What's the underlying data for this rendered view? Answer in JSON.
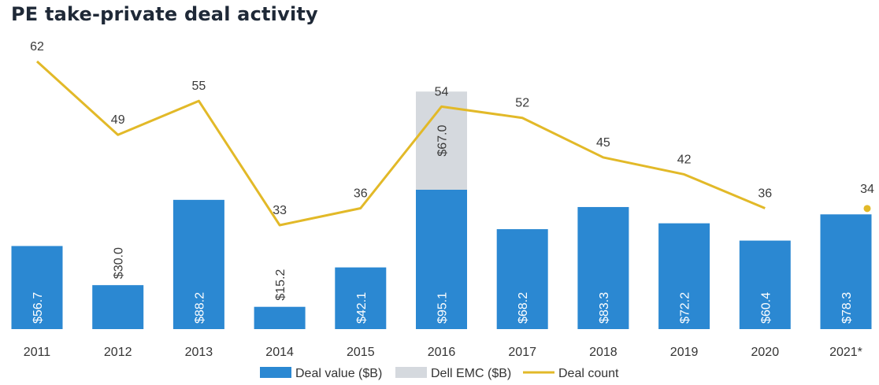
{
  "title": "PE take-private deal activity",
  "colors": {
    "deal_value": "#2b88d2",
    "dell_emc": "#d5d9de",
    "deal_count": "#e2b928"
  },
  "chart_data": {
    "type": "bar",
    "title": "PE take-private deal activity",
    "categories": [
      "2011",
      "2012",
      "2013",
      "2014",
      "2015",
      "2016",
      "2017",
      "2018",
      "2019",
      "2020",
      "2021*"
    ],
    "series": [
      {
        "name": "Deal value ($B)",
        "type": "bar",
        "stack": "value",
        "values": [
          56.7,
          30.0,
          88.2,
          15.2,
          42.1,
          95.1,
          68.2,
          83.3,
          72.2,
          60.4,
          78.3
        ],
        "labels": [
          "$56.7",
          "$30.0",
          "$88.2",
          "$15.2",
          "$42.1",
          "$95.1",
          "$68.2",
          "$83.3",
          "$72.2",
          "$60.4",
          "$78.3"
        ]
      },
      {
        "name": "Dell EMC ($B)",
        "type": "bar",
        "stack": "value",
        "values": [
          null,
          null,
          null,
          null,
          null,
          67.0,
          null,
          null,
          null,
          null,
          null
        ],
        "labels": [
          null,
          null,
          null,
          null,
          null,
          "$67.0",
          null,
          null,
          null,
          null,
          null
        ]
      },
      {
        "name": "Deal count",
        "type": "line",
        "values": [
          62,
          49,
          55,
          33,
          36,
          54,
          52,
          45,
          42,
          36,
          34
        ],
        "labels": [
          "62",
          "49",
          "55",
          "33",
          "36",
          "54",
          "52",
          "45",
          "42",
          "36",
          "34"
        ],
        "note": "2021* shown as a separate point, not connected"
      }
    ],
    "legend": {
      "position": "bottom",
      "entries": [
        "Deal value ($B)",
        "Dell EMC ($B)",
        "Deal count"
      ]
    },
    "grid": false
  }
}
